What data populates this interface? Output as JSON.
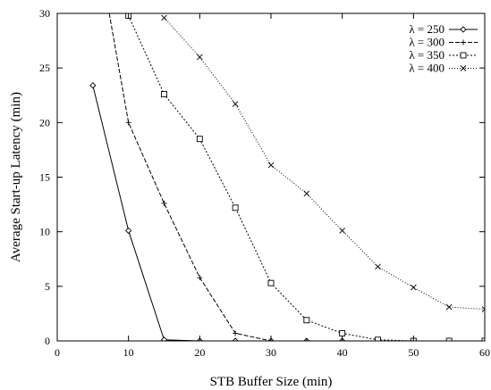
{
  "chart_data": {
    "type": "line",
    "title": "",
    "xlabel": "STB Buffer Size (min)",
    "ylabel": "Average Start-up Latency (min)",
    "xlim": [
      0,
      60
    ],
    "ylim": [
      0,
      30
    ],
    "xticks": [
      0,
      10,
      20,
      30,
      40,
      50,
      60
    ],
    "yticks": [
      0,
      5,
      10,
      15,
      20,
      25,
      30
    ],
    "grid": false,
    "legend_position": "top-right",
    "series": [
      {
        "name": "λ = 250",
        "marker": "diamond",
        "dash": "solid",
        "x": [
          5,
          10,
          15,
          20,
          25,
          30,
          35,
          40,
          45,
          50,
          55,
          60
        ],
        "y": [
          23.4,
          10.1,
          0.1,
          0.0,
          0.0,
          0.0,
          0.0,
          0.0,
          0.0,
          0.0,
          0.0,
          0.0
        ]
      },
      {
        "name": "λ = 300",
        "marker": "plus",
        "dash": "dashed",
        "x": [
          7.3,
          10,
          15,
          20,
          25,
          30,
          35,
          40,
          45,
          50,
          55,
          60
        ],
        "y": [
          30,
          20.0,
          12.6,
          5.8,
          0.7,
          0.0,
          0.0,
          0.0,
          0.0,
          0.0,
          0.0,
          0.0
        ]
      },
      {
        "name": "λ = 350",
        "marker": "square",
        "dash": "dotted",
        "x": [
          10,
          15,
          20,
          25,
          30,
          35,
          40,
          45,
          50,
          55,
          60
        ],
        "y": [
          29.8,
          22.6,
          18.5,
          12.2,
          5.3,
          1.9,
          0.7,
          0.1,
          0.0,
          0.0,
          0.0
        ]
      },
      {
        "name": "λ = 400",
        "marker": "cross",
        "dash": "finedotted",
        "x": [
          15,
          20,
          25,
          30,
          35,
          40,
          45,
          50,
          55,
          60
        ],
        "y": [
          29.6,
          26.0,
          21.7,
          16.1,
          13.5,
          10.1,
          6.8,
          4.9,
          3.1,
          2.9
        ]
      }
    ]
  }
}
